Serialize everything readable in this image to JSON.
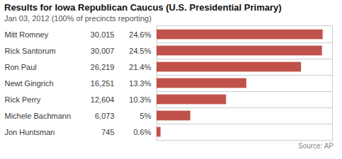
{
  "chart_data": {
    "type": "bar",
    "orientation": "horizontal",
    "title": "Results for Iowa Republican Caucus (U.S. Presidential Primary)",
    "subtitle": "Jan 03, 2012 (100% of precincts reporting)",
    "caption": "Source: AP",
    "categories": [
      "Mitt Romney",
      "Rick Santorum",
      "Ron Paul",
      "Newt Gingrich",
      "Rick Perry",
      "Michele Bachmann",
      "Jon Huntsman"
    ],
    "values": [
      24.6,
      24.5,
      21.4,
      13.3,
      10.3,
      5.0,
      0.6
    ],
    "value_labels": [
      "24.6%",
      "24.5%",
      "21.4%",
      "13.3%",
      "10.3%",
      "5%",
      "0.6%"
    ],
    "votes": [
      "30,015",
      "30,007",
      "26,219",
      "16,251",
      "12,604",
      "6,073",
      "745"
    ],
    "color": "#c0524a",
    "xlim": [
      0,
      26
    ],
    "grid": true,
    "data_labels": true,
    "tick_labels": "y"
  }
}
